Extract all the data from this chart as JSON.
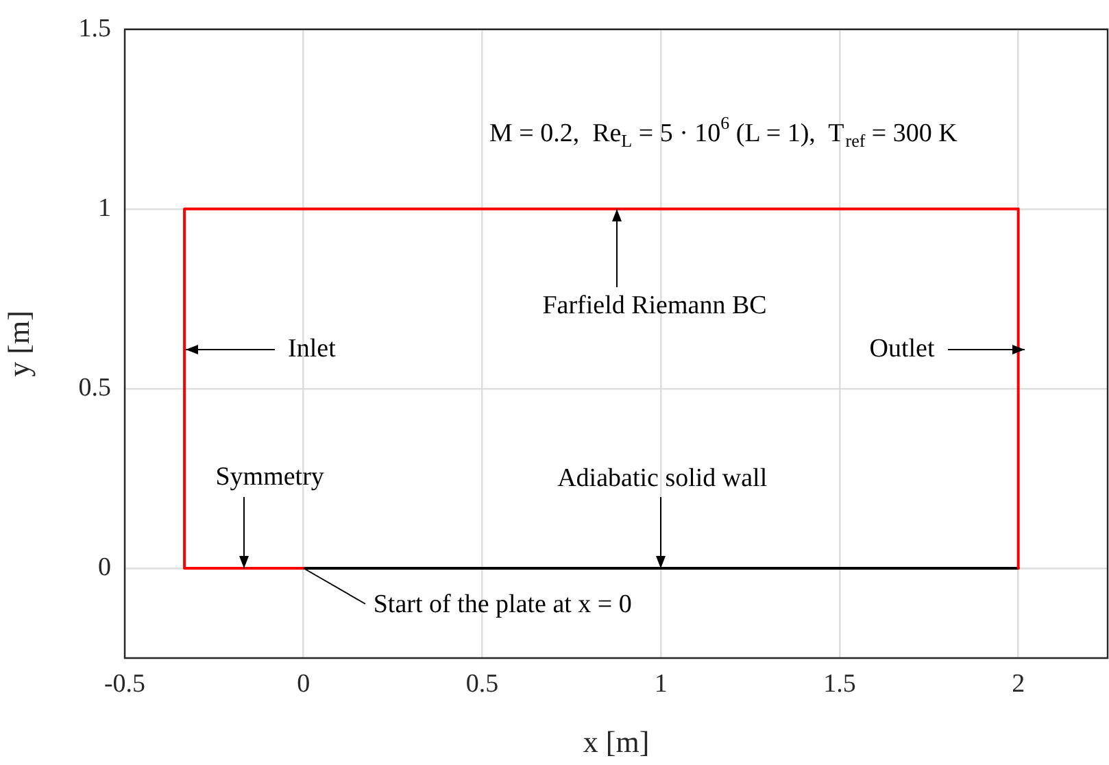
{
  "chart_data": {
    "type": "line",
    "xlabel": "x [m]",
    "ylabel": "y [m]",
    "xlim": [
      -0.5,
      2.25
    ],
    "ylim": [
      -0.25,
      1.5
    ],
    "xticks": [
      -0.5,
      0,
      0.5,
      1,
      1.5,
      2
    ],
    "yticks": [
      0,
      0.5,
      1,
      1.5
    ],
    "grid": true,
    "legend": false,
    "marker": "none",
    "line_style": "solid",
    "series": [
      {
        "color": "#ff0000",
        "x": [
          0,
          -0.333,
          -0.333,
          2,
          2
        ],
        "values": [
          0,
          0,
          1,
          1,
          0
        ]
      },
      {
        "color": "#000000",
        "x": [
          0,
          2
        ],
        "values": [
          0,
          0
        ]
      }
    ],
    "annotations": [
      "M = 0.2,  Re$_{L}$ = 5 · 10$^{6}$ (L = 1),  T$_{ref}$ = 300 K",
      "Inlet",
      "Outlet",
      {
        "text": "Farfield Riemann BC",
        "x": 0.875,
        "y": 1
      },
      {
        "text": "Symmetry",
        "x": -0.167,
        "y": 0
      },
      {
        "text": "Adiabatic solid wall",
        "x": 1,
        "y": 0
      },
      {
        "text": "Start of the plate at x = 0",
        "x": 0,
        "y": 0
      }
    ]
  }
}
